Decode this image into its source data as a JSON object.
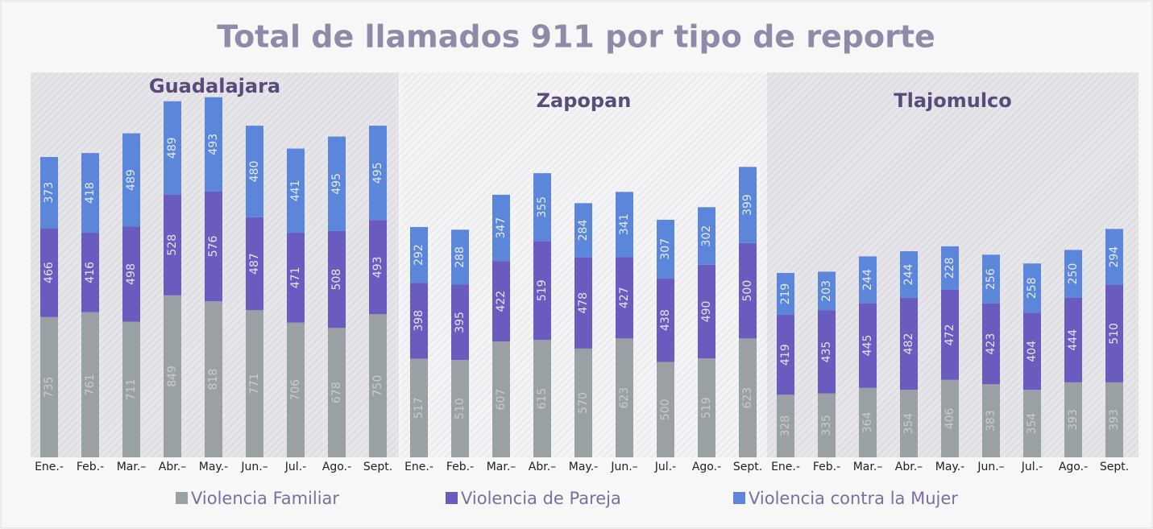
{
  "title": "Total de llamados 911 por tipo de reporte",
  "chart_data": [
    {
      "type": "bar",
      "stacked": true,
      "title": "Guadalajara",
      "categories": [
        "Ene.-",
        "Feb.-",
        "Mar.–",
        "Abr.–",
        "May.-",
        "Jun.–",
        "Jul.-",
        "Ago.-",
        "Sept."
      ],
      "series": [
        {
          "name": "Violencia Familiar",
          "color": "#9aa1a5",
          "values": [
            735,
            761,
            711,
            849,
            818,
            771,
            706,
            678,
            750
          ]
        },
        {
          "name": "Violencia de Pareja",
          "color": "#6a5bbf",
          "values": [
            466,
            416,
            498,
            528,
            576,
            487,
            471,
            508,
            493
          ]
        },
        {
          "name": "Violencia contra la Mujer",
          "color": "#5b86d9",
          "values": [
            373,
            418,
            489,
            489,
            493,
            480,
            441,
            495,
            495
          ]
        }
      ]
    },
    {
      "type": "bar",
      "stacked": true,
      "title": "Zapopan",
      "categories": [
        "Ene.-",
        "Feb.-",
        "Mar.–",
        "Abr.–",
        "May.-",
        "Jun.–",
        "Jul.-",
        "Ago.-",
        "Sept."
      ],
      "series": [
        {
          "name": "Violencia Familiar",
          "color": "#9aa1a5",
          "values": [
            517,
            510,
            607,
            615,
            570,
            623,
            500,
            519,
            623
          ]
        },
        {
          "name": "Violencia de Pareja",
          "color": "#6a5bbf",
          "values": [
            398,
            395,
            422,
            519,
            478,
            427,
            438,
            490,
            500
          ]
        },
        {
          "name": "Violencia contra la Mujer",
          "color": "#5b86d9",
          "values": [
            292,
            288,
            347,
            355,
            284,
            341,
            307,
            302,
            399
          ]
        }
      ]
    },
    {
      "type": "bar",
      "stacked": true,
      "title": "Tlajomulco",
      "categories": [
        "Ene.-",
        "Feb.-",
        "Mar.–",
        "Abr.–",
        "May.-",
        "Jun.–",
        "Jul.-",
        "Ago.-",
        "Sept."
      ],
      "series": [
        {
          "name": "Violencia Familiar",
          "color": "#9aa1a5",
          "values": [
            328,
            335,
            364,
            354,
            406,
            383,
            354,
            393,
            393
          ]
        },
        {
          "name": "Violencia de Pareja",
          "color": "#6a5bbf",
          "values": [
            419,
            435,
            445,
            482,
            472,
            423,
            404,
            444,
            510
          ]
        },
        {
          "name": "Violencia contra la Mujer",
          "color": "#5b86d9",
          "values": [
            219,
            203,
            244,
            244,
            228,
            256,
            258,
            250,
            294
          ]
        }
      ]
    }
  ]
}
